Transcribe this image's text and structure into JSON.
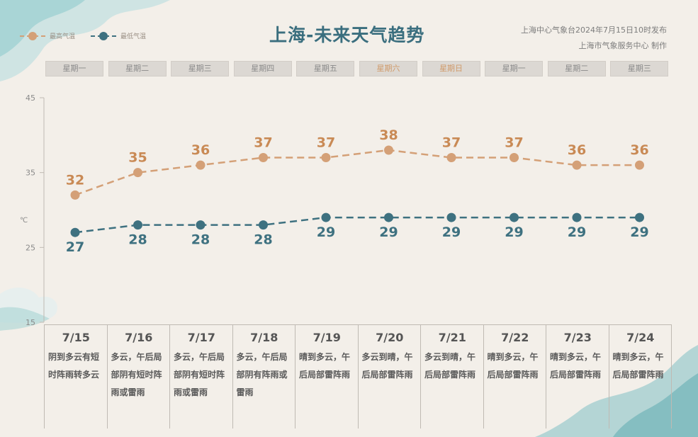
{
  "title": "上海-未来天气趋势",
  "source_line1": "上海中心气象台2024年7月15日10时发布",
  "source_line2": "上海市气象服务中心  制作",
  "legend": [
    {
      "name": "最高气温",
      "color": "#d4a077"
    },
    {
      "name": "最低气温",
      "color": "#3e7180"
    }
  ],
  "weekdays": [
    {
      "label": "星期一",
      "weekend": false
    },
    {
      "label": "星期二",
      "weekend": false
    },
    {
      "label": "星期三",
      "weekend": false
    },
    {
      "label": "星期四",
      "weekend": false
    },
    {
      "label": "星期五",
      "weekend": false
    },
    {
      "label": "星期六",
      "weekend": true
    },
    {
      "label": "星期日",
      "weekend": true
    },
    {
      "label": "星期一",
      "weekend": false
    },
    {
      "label": "星期二",
      "weekend": false
    },
    {
      "label": "星期三",
      "weekend": false
    }
  ],
  "chart_data": {
    "type": "line",
    "ylabel": "℃",
    "ylim": [
      15,
      45
    ],
    "yticks": [
      45,
      35,
      25,
      15
    ],
    "categories": [
      "7/15",
      "7/16",
      "7/17",
      "7/18",
      "7/19",
      "7/20",
      "7/21",
      "7/22",
      "7/23",
      "7/24"
    ],
    "series": [
      {
        "name": "最高气温",
        "color": "#d4a077",
        "values": [
          32,
          35,
          36,
          37,
          37,
          38,
          37,
          37,
          36,
          36
        ]
      },
      {
        "name": "最低气温",
        "color": "#3e7180",
        "values": [
          27,
          28,
          28,
          28,
          29,
          29,
          29,
          29,
          29,
          29
        ]
      }
    ],
    "grid": false
  },
  "forecast": [
    "阴到多云有短时阵雨转多云",
    "多云，午后局部阴有短时阵雨或雷雨",
    "多云，午后局部阴有短时阵雨或雷雨",
    "多云，午后局部阴有阵雨或雷雨",
    "晴到多云，午后局部雷阵雨",
    "多云到晴，午后局部雷阵雨",
    "多云到晴，午后局部雷阵雨",
    "晴到多云，午后局部雷阵雨",
    "晴到多云，午后局部雷阵雨",
    "晴到多云，午后局部雷阵雨"
  ]
}
